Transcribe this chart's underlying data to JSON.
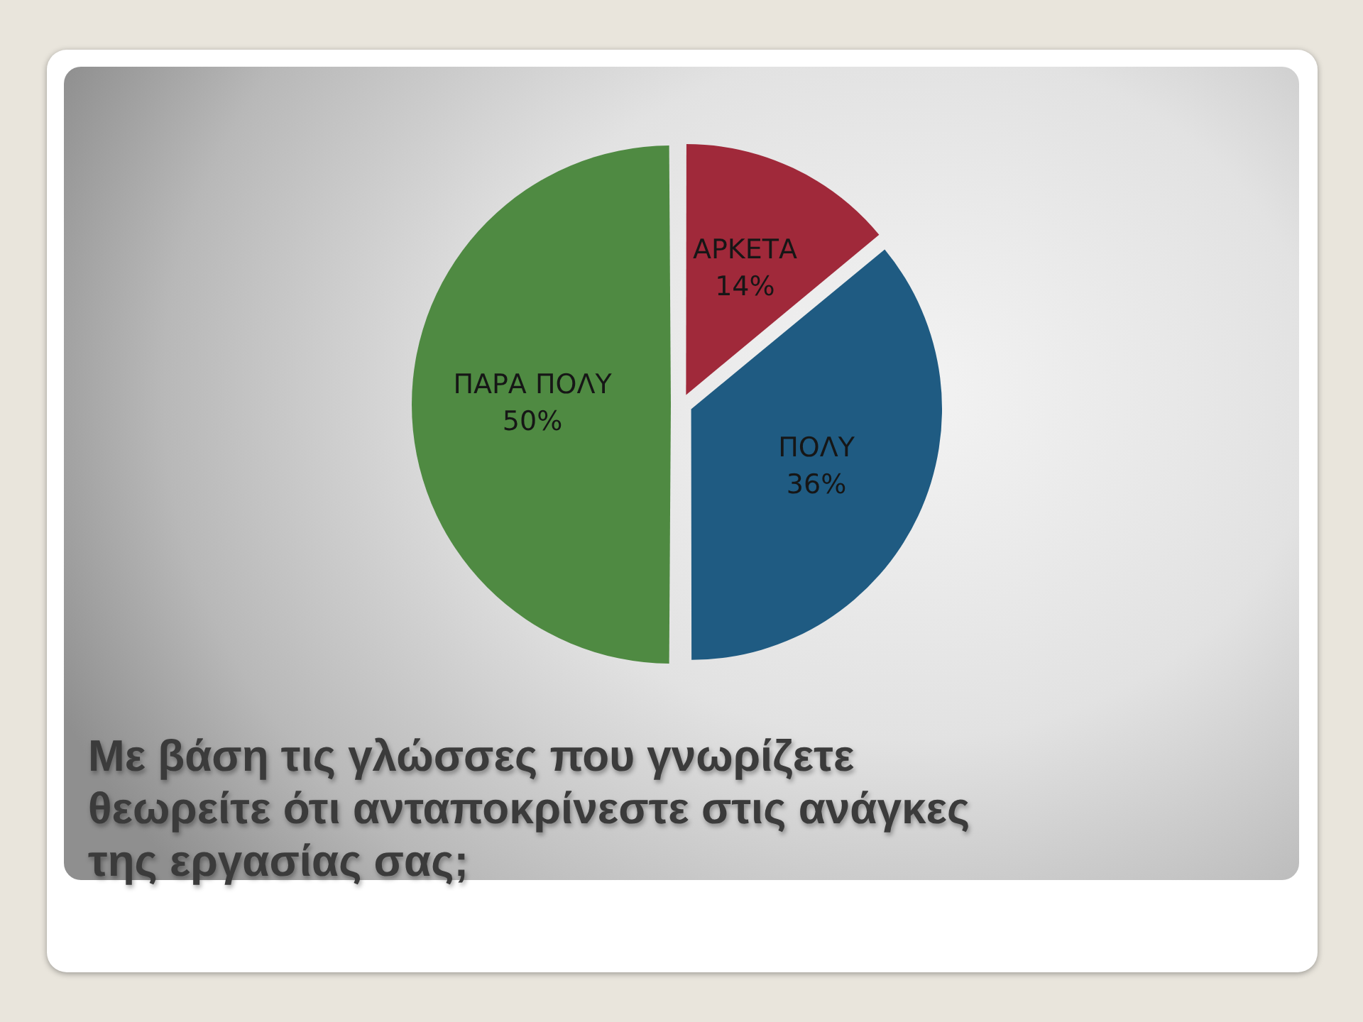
{
  "chart_data": {
    "type": "pie",
    "title": "Με βάση τις γλώσσες που γνωρίζετε θεωρείτε ότι ανταποκρίνεστε στις ανάγκες της εργασίας σας;",
    "categories": [
      "ΑΡΚΕΤΑ",
      "ΠΟΛΥ",
      "ΠΑΡΑ ΠΟΛΥ"
    ],
    "values": [
      14,
      36,
      50
    ],
    "value_labels": [
      "14%",
      "36%",
      "50%"
    ],
    "colors": [
      "#a0293a",
      "#1f5b82",
      "#4f8a42"
    ]
  }
}
